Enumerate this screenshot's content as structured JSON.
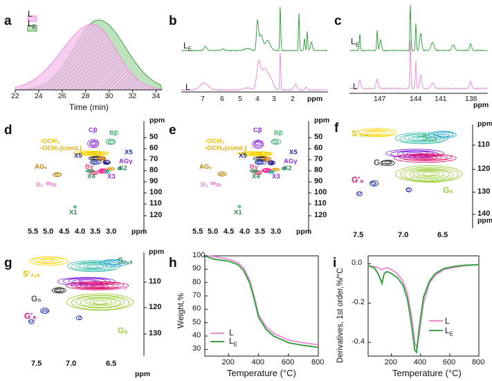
{
  "colors": {
    "L": "#e98fd8",
    "LE": "#39a043",
    "Lfill": "#f6c6ee",
    "LEfill": "#bfe2bf"
  },
  "chart_data": [
    {
      "id": "a",
      "type": "area",
      "xlabel": "Time (min)",
      "xticks": [
        "22",
        "24",
        "26",
        "28",
        "30",
        "32",
        "34"
      ],
      "xlim": [
        22,
        34.5
      ],
      "series": [
        {
          "name": "L",
          "peak": 28.6
        },
        {
          "name": "LE",
          "peak": 29.1
        }
      ],
      "legend": [
        {
          "name": "L",
          "main": "L",
          "sub": ""
        },
        {
          "name": "LE",
          "main": "L",
          "sub": "E"
        }
      ]
    },
    {
      "id": "b",
      "type": "line",
      "xlabel": "ppm",
      "xticks": [
        "7",
        "6",
        "5",
        "4",
        "3",
        "2",
        "ppm"
      ],
      "series": [
        {
          "name": "LE",
          "label": "L",
          "sub": "E"
        },
        {
          "name": "L",
          "label": "L",
          "sub": ""
        }
      ]
    },
    {
      "id": "c",
      "type": "line",
      "xlabel": "ppm",
      "xticks": [
        "147",
        "144",
        "141",
        "138",
        "ppm"
      ],
      "series": [
        {
          "name": "LE",
          "label": "L",
          "sub": "E"
        },
        {
          "name": "L",
          "label": "L",
          "sub": ""
        }
      ]
    },
    {
      "id": "d",
      "type": "scatter",
      "yticks": [
        "ppm",
        "50",
        "60",
        "70",
        "80",
        "90",
        "100",
        "110",
        "120"
      ],
      "xticks": [
        "5.5",
        "5.0",
        "4.5",
        "4.0",
        "3.5",
        "3.0",
        "ppm"
      ],
      "annotations": [
        "Cβ",
        "Bβ",
        "-OCH₃",
        "-OCH₃(cond.)",
        "X5",
        "X5",
        "AGγ",
        "AGₓ",
        "Bγ",
        "X2",
        "X4",
        "X3",
        "Bₓ",
        "X1"
      ]
    },
    {
      "id": "e",
      "type": "scatter",
      "yticks": [
        "ppm",
        "50",
        "60",
        "70",
        "80",
        "90",
        "100",
        "110",
        "120"
      ],
      "xticks": [
        "5.5",
        "5.0",
        "4.5",
        "4.0",
        "3.5",
        "3.0",
        "ppm"
      ],
      "annotations": [
        "Cβ",
        "Bβ",
        "-OCH₃",
        "-OCH₃(cond.)",
        "X5",
        "X5",
        "AGγ",
        "AGₓ",
        "Bγ",
        "X2",
        "X4",
        "X3",
        "Bₓ",
        "X1"
      ]
    },
    {
      "id": "f",
      "type": "scatter",
      "yticks": [
        "ppm",
        "110",
        "120",
        "130",
        "140",
        "ppm"
      ],
      "xticks": [
        "7.5",
        "7.0",
        "6.5"
      ],
      "annotations": [
        "S'₂,₆",
        "S₂,₆",
        "G₂",
        "G'₆",
        "G₆"
      ]
    },
    {
      "id": "g",
      "type": "scatter",
      "yticks": [
        "ppm",
        "110",
        "120",
        "130"
      ],
      "xticks": [
        "7.5",
        "7.0",
        "6.5",
        "ppm"
      ],
      "annotations": [
        "S₂,₆",
        "S'₂,₆",
        "G₂",
        "G₅",
        "G'₆",
        "G₆"
      ]
    },
    {
      "id": "h",
      "type": "line",
      "xlabel": "Temperature (°C)",
      "ylabel": "Weight,%",
      "xticks": [
        "200",
        "400",
        "600",
        "800"
      ],
      "yticks": [
        "100",
        "90",
        "80",
        "70",
        "60",
        "50",
        "40",
        "30"
      ],
      "xlim": [
        40,
        800
      ],
      "ylim": [
        25,
        100
      ],
      "series": [
        {
          "name": "L",
          "x": [
            40,
            100,
            200,
            260,
            300,
            340,
            370,
            400,
            450,
            500,
            600,
            700,
            800
          ],
          "y": [
            100,
            99.5,
            97.5,
            95,
            91,
            82,
            70,
            56,
            47,
            42,
            37,
            35,
            33.5
          ]
        },
        {
          "name": "LE",
          "x": [
            40,
            100,
            200,
            260,
            300,
            340,
            370,
            400,
            450,
            500,
            600,
            700,
            800
          ],
          "y": [
            100,
            97.5,
            96,
            93.5,
            89,
            80,
            68,
            54,
            45,
            40,
            35,
            33,
            31.5
          ]
        }
      ],
      "legend": [
        {
          "name": "L",
          "main": "L",
          "sub": ""
        },
        {
          "name": "LE",
          "main": "L",
          "sub": "E"
        }
      ]
    },
    {
      "id": "i",
      "type": "line",
      "xlabel": "Temperature (°C)",
      "ylabel": "Derivatives, 1st order,%/°C",
      "xticks": [
        "200",
        "400",
        "600",
        "800"
      ],
      "yticks": [
        "0.0",
        "-0.2",
        "-0.4"
      ],
      "xlim": [
        40,
        800
      ],
      "ylim": [
        -0.47,
        0.04
      ],
      "series": [
        {
          "name": "L",
          "x": [
            40,
            80,
            110,
            130,
            150,
            170,
            200,
            240,
            280,
            310,
            340,
            360,
            375,
            390,
            420,
            460,
            500,
            560,
            620,
            700,
            800
          ],
          "y": [
            -0.01,
            -0.015,
            -0.02,
            -0.03,
            -0.025,
            -0.02,
            -0.03,
            -0.05,
            -0.09,
            -0.15,
            -0.28,
            -0.4,
            -0.43,
            -0.36,
            -0.2,
            -0.1,
            -0.06,
            -0.03,
            -0.02,
            -0.01,
            -0.005
          ]
        },
        {
          "name": "LE",
          "x": [
            40,
            80,
            100,
            120,
            135,
            150,
            170,
            200,
            240,
            280,
            310,
            340,
            360,
            372,
            390,
            420,
            460,
            500,
            560,
            620,
            700,
            800
          ],
          "y": [
            -0.01,
            -0.02,
            -0.04,
            -0.07,
            -0.1,
            -0.05,
            -0.04,
            -0.05,
            -0.07,
            -0.11,
            -0.18,
            -0.32,
            -0.44,
            -0.45,
            -0.33,
            -0.17,
            -0.09,
            -0.05,
            -0.025,
            -0.015,
            -0.008,
            -0.005
          ]
        }
      ],
      "legend": [
        {
          "name": "L",
          "main": "L",
          "sub": ""
        },
        {
          "name": "LE",
          "main": "L",
          "sub": "E"
        }
      ]
    }
  ],
  "panel_labels": [
    "a",
    "b",
    "c",
    "d",
    "e",
    "f",
    "g",
    "h",
    "i"
  ]
}
